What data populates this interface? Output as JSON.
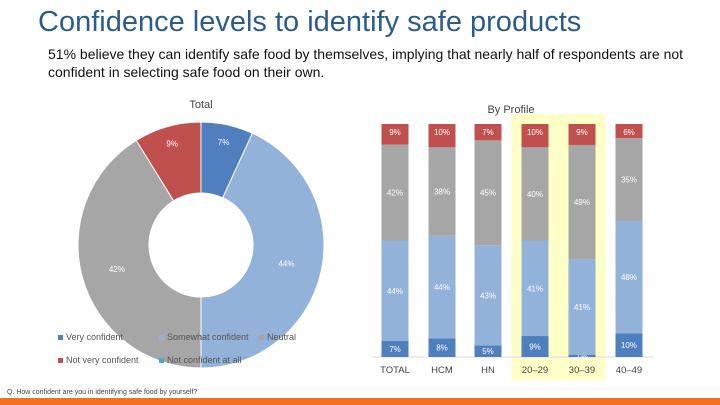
{
  "header": {
    "title": "Confidence levels to identify safe products",
    "subtitle": "51% believe they can identify safe food by themselves, implying that nearly half of respondents are not confident in selecting safe food on their own."
  },
  "footnote": "Q. How confident are you in identifying safe food by yourself?",
  "colors": {
    "title": "#2a5c8c",
    "very": "#4f7fbf",
    "somewhat": "#93b2d9",
    "neutral": "#a6a6a6",
    "not_very": "#c0504d",
    "not_at_all": "#4bacc6",
    "highlight": "#ffffc8",
    "accent": "#f37021"
  },
  "chart_data": [
    {
      "type": "pie",
      "subtype": "donut",
      "title": "Total",
      "slices": [
        {
          "name": "Very confident",
          "value": 7,
          "label": "7%"
        },
        {
          "name": "Somewhat confident",
          "value": 44,
          "label": "44%"
        },
        {
          "name": "Neutral",
          "value": 42,
          "label": "42%"
        },
        {
          "name": "Not very confident",
          "value": 9,
          "label": "9%"
        }
      ],
      "legend": {
        "position": "bottom",
        "items": [
          "Very confident",
          "Somewhat confident",
          "Neutral",
          "Not very confident",
          "Not confident at all"
        ]
      }
    },
    {
      "type": "bar",
      "subtype": "stacked-100",
      "title": "By Profile",
      "categories": [
        "TOTAL",
        "HCM",
        "HN",
        "20–29",
        "30–39",
        "40–49"
      ],
      "highlighted": [
        "20–29",
        "30–39"
      ],
      "series": [
        {
          "name": "Very confident",
          "values": [
            7,
            8,
            5,
            9,
            1,
            10
          ]
        },
        {
          "name": "Somewhat confident",
          "values": [
            44,
            44,
            43,
            41,
            41,
            48
          ]
        },
        {
          "name": "Neutral",
          "values": [
            42,
            38,
            45,
            40,
            49,
            35
          ]
        },
        {
          "name": "Not very confident",
          "values": [
            9,
            10,
            7,
            10,
            9,
            6
          ]
        }
      ]
    }
  ]
}
